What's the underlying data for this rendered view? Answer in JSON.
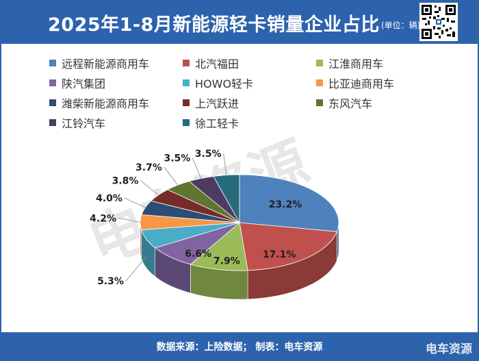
{
  "header": {
    "title": "2025年1-8月新能源轻卡销量企业占比",
    "unit": "(单位：辆)"
  },
  "footer": {
    "text": "数据来源：上险数据； 制表：电车资源",
    "brand": "电车资源"
  },
  "watermark": "电车资源",
  "chart_data": {
    "type": "pie",
    "style": "3d",
    "title": "2025年1-8月新能源轻卡销量企业占比",
    "unit": "(单位：辆)",
    "legend_position": "top",
    "slices": [
      {
        "name": "远程新能源商用车",
        "value": 23.2,
        "label": "23.2%",
        "color": "#4f81bd"
      },
      {
        "name": "北汽福田",
        "value": 17.1,
        "label": "17.1%",
        "color": "#c0504d"
      },
      {
        "name": "江淮商用车",
        "value": 7.9,
        "label": "7.9%",
        "color": "#9bbb59"
      },
      {
        "name": "陕汽集团",
        "value": 6.6,
        "label": "6.6%",
        "color": "#8064a2"
      },
      {
        "name": "HOWO轻卡",
        "value": 5.3,
        "label": "5.3%",
        "color": "#4bacc6"
      },
      {
        "name": "比亚迪商用车",
        "value": 4.2,
        "label": "4.2%",
        "color": "#f79646"
      },
      {
        "name": "潍柴新能源商用车",
        "value": 4.0,
        "label": "4.0%",
        "color": "#2c4d75"
      },
      {
        "name": "上汽跃进",
        "value": 3.8,
        "label": "3.8%",
        "color": "#772c2a"
      },
      {
        "name": "东风汽车",
        "value": 3.7,
        "label": "3.7%",
        "color": "#5f7530"
      },
      {
        "name": "江铃汽车",
        "value": 3.5,
        "label": "3.5%",
        "color": "#4d3b62"
      },
      {
        "name": "徐工轻卡",
        "value": 3.5,
        "label": "3.5%",
        "color": "#276a7c"
      }
    ]
  }
}
